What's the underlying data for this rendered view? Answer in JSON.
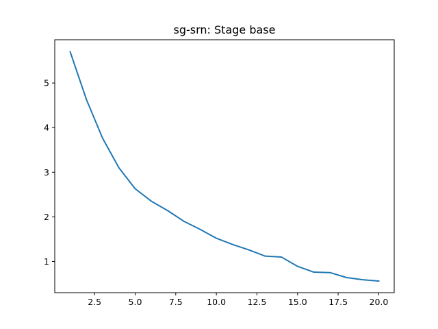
{
  "chart_data": {
    "type": "line",
    "title": "sg-srn: Stage base",
    "xlabel": "",
    "ylabel": "",
    "xlim": [
      0.05,
      20.95
    ],
    "ylim": [
      0.3,
      5.97
    ],
    "xticks": [
      2.5,
      5.0,
      7.5,
      10.0,
      12.5,
      15.0,
      17.5,
      20.0
    ],
    "xtick_labels": [
      "2.5",
      "5.0",
      "7.5",
      "10.0",
      "12.5",
      "15.0",
      "17.5",
      "20.0"
    ],
    "yticks": [
      1,
      2,
      3,
      4,
      5
    ],
    "ytick_labels": [
      "1",
      "2",
      "3",
      "4",
      "5"
    ],
    "grid": false,
    "series": [
      {
        "color": "#1f77b4",
        "x": [
          1,
          2,
          3,
          4,
          5,
          6,
          7,
          8,
          9,
          10,
          11,
          12,
          13,
          14,
          15,
          16,
          17,
          18,
          19,
          20
        ],
        "values": [
          5.7,
          4.63,
          3.76,
          3.1,
          2.63,
          2.35,
          2.14,
          1.9,
          1.72,
          1.52,
          1.38,
          1.26,
          1.12,
          1.1,
          0.89,
          0.76,
          0.75,
          0.64,
          0.59,
          0.56
        ]
      }
    ]
  }
}
